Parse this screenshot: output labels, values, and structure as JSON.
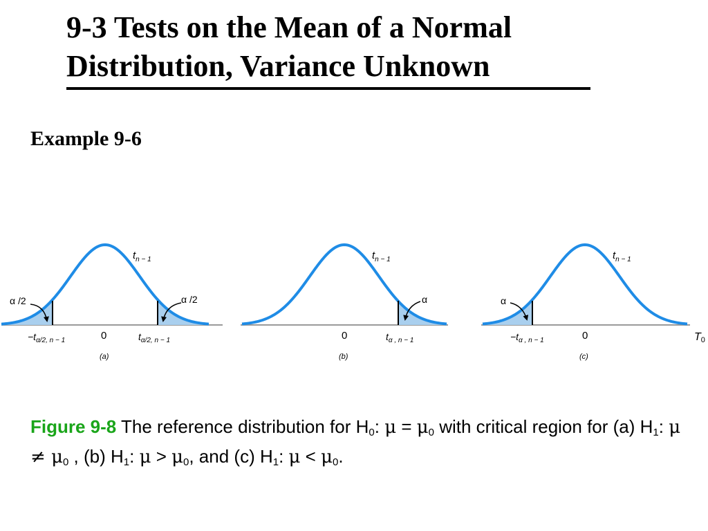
{
  "title": {
    "line1": "9-3 Tests on the Mean of a Normal",
    "line2": "Distribution, Variance Unknown"
  },
  "example": "Example 9-6",
  "figure": {
    "panels": [
      {
        "id": "a",
        "label": "(a)",
        "curve_label_t": "t",
        "curve_label_sub": "n − 1",
        "zero": "0",
        "alpha_labels": [
          "α /2",
          "α /2"
        ],
        "ticks": [
          {
            "prefix": "−t",
            "sub": "α/2, n − 1"
          },
          {
            "prefix": "t",
            "sub": "α/2, n − 1"
          }
        ]
      },
      {
        "id": "b",
        "label": "(b)",
        "curve_label_t": "t",
        "curve_label_sub": "n − 1",
        "zero": "0",
        "alpha_labels": [
          "α"
        ],
        "ticks": [
          {
            "prefix": "t",
            "sub": "α , n − 1"
          }
        ]
      },
      {
        "id": "c",
        "label": "(c)",
        "curve_label_t": "t",
        "curve_label_sub": "n − 1",
        "zero": "0",
        "alpha_labels": [
          "α"
        ],
        "ticks": [
          {
            "prefix": "−t",
            "sub": "α , n − 1"
          }
        ],
        "axis_label_t": "T",
        "axis_label_sub": "0"
      }
    ],
    "colors": {
      "curve": "#1f8ce6",
      "shade": "#a9cfee",
      "axis": "#9a9a9a",
      "caption_label": "#1aa51a"
    }
  },
  "caption": {
    "fig_label": "Figure 9-8",
    "p1": " The reference distribution for H",
    "s1": "0",
    "p2": ": ",
    "mu1": "μ",
    "p3": " = ",
    "mu2": "μ",
    "s2": "0",
    "p4": " with critical region for (a) H",
    "s3": "1",
    "p5": ": ",
    "mu3": "μ",
    "ne": " ≠ ",
    "mu4": "μ",
    "s4": "0",
    "p6": " , (b) H",
    "s5": "1",
    "p7": ": ",
    "mu5": "μ",
    "gt": " > ",
    "mu6": "μ",
    "s6": "0",
    "p8": ", and (c) H",
    "s7": "1",
    "p9": ": ",
    "mu7": "μ",
    "lt": " < ",
    "mu8": "μ",
    "s8": "0",
    "p10": "."
  }
}
